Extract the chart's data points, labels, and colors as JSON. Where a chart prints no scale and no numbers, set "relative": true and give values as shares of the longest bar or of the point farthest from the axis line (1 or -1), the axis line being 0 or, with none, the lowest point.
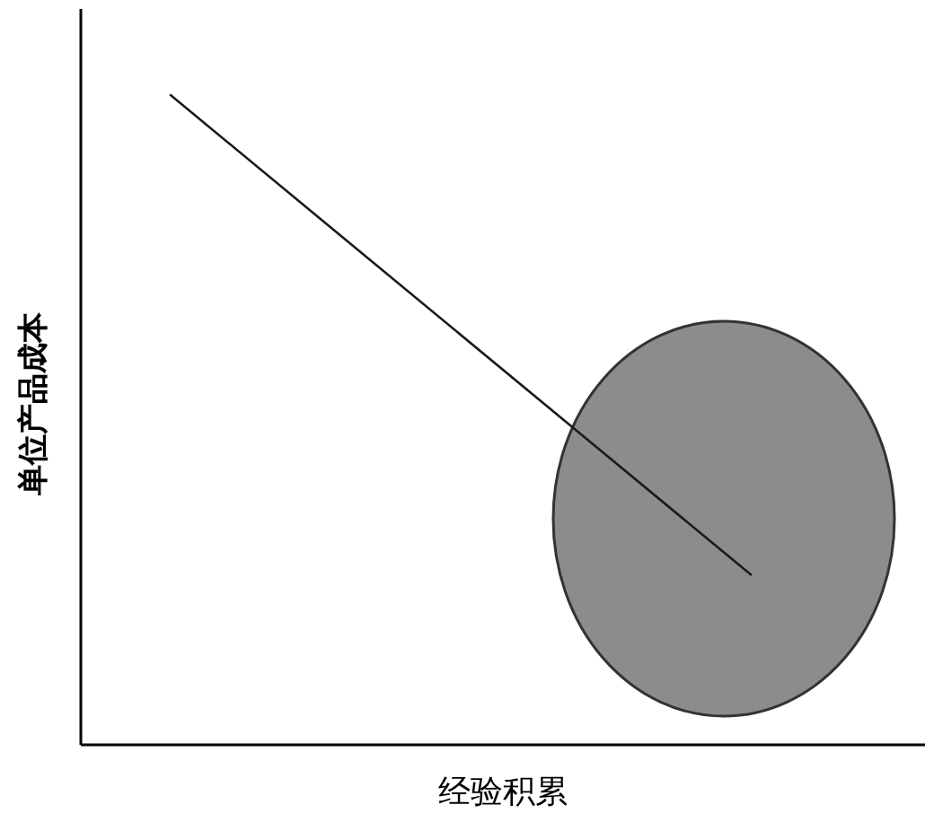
{
  "chart_data": {
    "type": "line",
    "relative": true,
    "xlabel": "经验积累",
    "ylabel": "单位产品成本",
    "categories": [
      null,
      null
    ],
    "series": [
      {
        "color": "#1a1a1a",
        "values": [
          1,
          0.262
        ]
      }
    ]
  }
}
